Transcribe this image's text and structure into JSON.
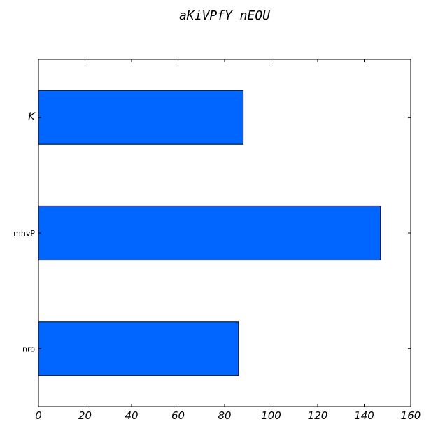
{
  "chart_data": {
    "type": "bar",
    "orientation": "horizontal",
    "title": "aKiVPfY nEOU",
    "xlabel": "",
    "ylabel": "",
    "categories": [
      "nro",
      "mhvP",
      "K"
    ],
    "values": [
      86,
      147,
      88
    ],
    "xlim": [
      0,
      160
    ],
    "x_ticks": [
      0,
      20,
      40,
      60,
      80,
      100,
      120,
      140,
      160
    ],
    "bar_color": "#0066ff",
    "grid": false,
    "legend": "none"
  }
}
